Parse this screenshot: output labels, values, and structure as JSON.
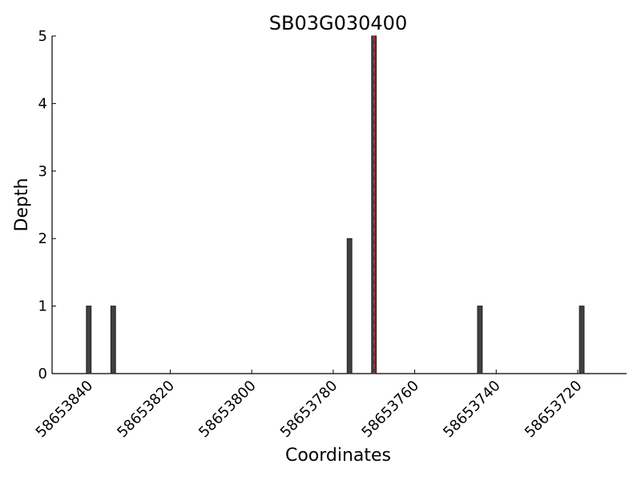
{
  "chart_data": {
    "type": "bar",
    "title": "SB03G030400",
    "x_label": "Coordinates",
    "y_label": "Depth",
    "x": [
      58653840,
      58653834,
      58653776,
      58653770,
      58653744,
      58653719
    ],
    "values": [
      1,
      1,
      2,
      5,
      1,
      1
    ],
    "color": "#404040",
    "xlim": [
      58653849,
      58653708
    ],
    "xticks": [
      58653840,
      58653820,
      58653800,
      58653780,
      58653760,
      58653740,
      58653720
    ],
    "ylim": [
      0,
      5
    ],
    "yticks": [
      0,
      1,
      2,
      3,
      4,
      5
    ],
    "vline": {
      "x": 58653770,
      "color": "#e41a1c",
      "style": "dashed"
    }
  }
}
